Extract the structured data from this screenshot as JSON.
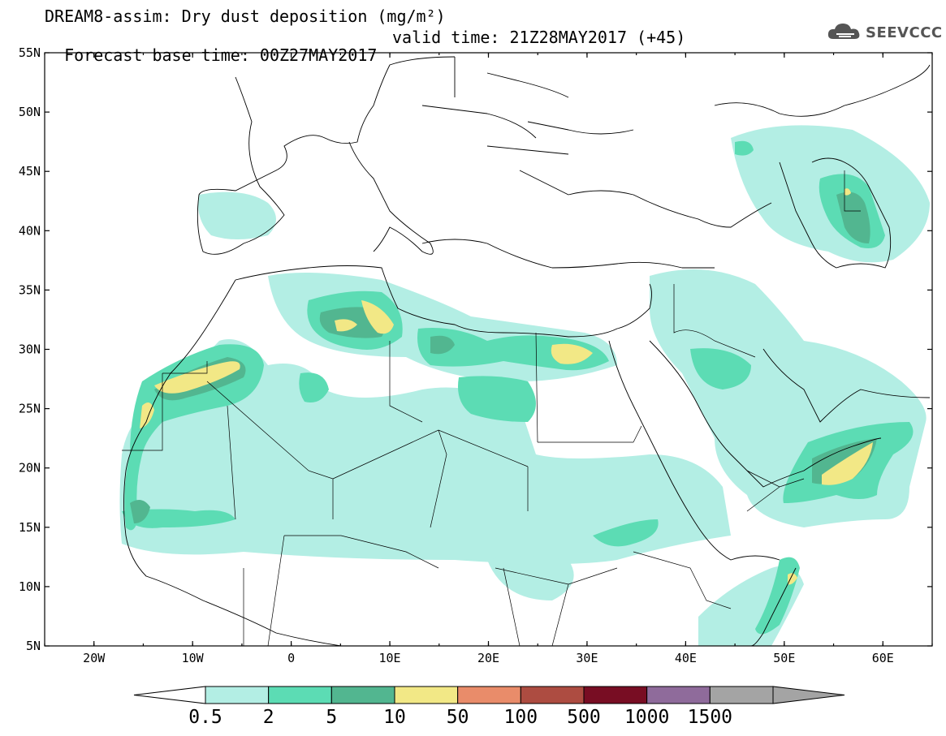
{
  "header": {
    "title": "DREAM8-assim: Dry dust deposition (mg/m²)",
    "base_time": "Forecast base time: 00Z27MAY2017",
    "valid_time": "valid time: 21Z28MAY2017 (+45)"
  },
  "logo": {
    "text": "SEEVCCC",
    "icon": "cloud-logo-icon"
  },
  "map": {
    "lat_labels": [
      "55N",
      "50N",
      "45N",
      "40N",
      "35N",
      "30N",
      "25N",
      "20N",
      "15N",
      "10N",
      "5N"
    ],
    "lon_labels": [
      "20W",
      "10W",
      "0",
      "10E",
      "20E",
      "30E",
      "40E",
      "50E",
      "60E"
    ],
    "lat_range": [
      5,
      55
    ],
    "lon_range": [
      -25,
      65
    ]
  },
  "colorbar": {
    "levels": [
      "0.5",
      "2",
      "5",
      "10",
      "50",
      "100",
      "500",
      "1000",
      "1500"
    ],
    "colors": [
      "#b3eee4",
      "#5cdcb4",
      "#52b690",
      "#f2e886",
      "#e98c6a",
      "#ad4c41",
      "#780d23",
      "#8f6b9b",
      "#a4a4a4"
    ]
  },
  "dust_colors": {
    "level1": "#b3eee4",
    "level2": "#5cdcb4",
    "level3": "#52b690",
    "level4": "#f2e886"
  }
}
